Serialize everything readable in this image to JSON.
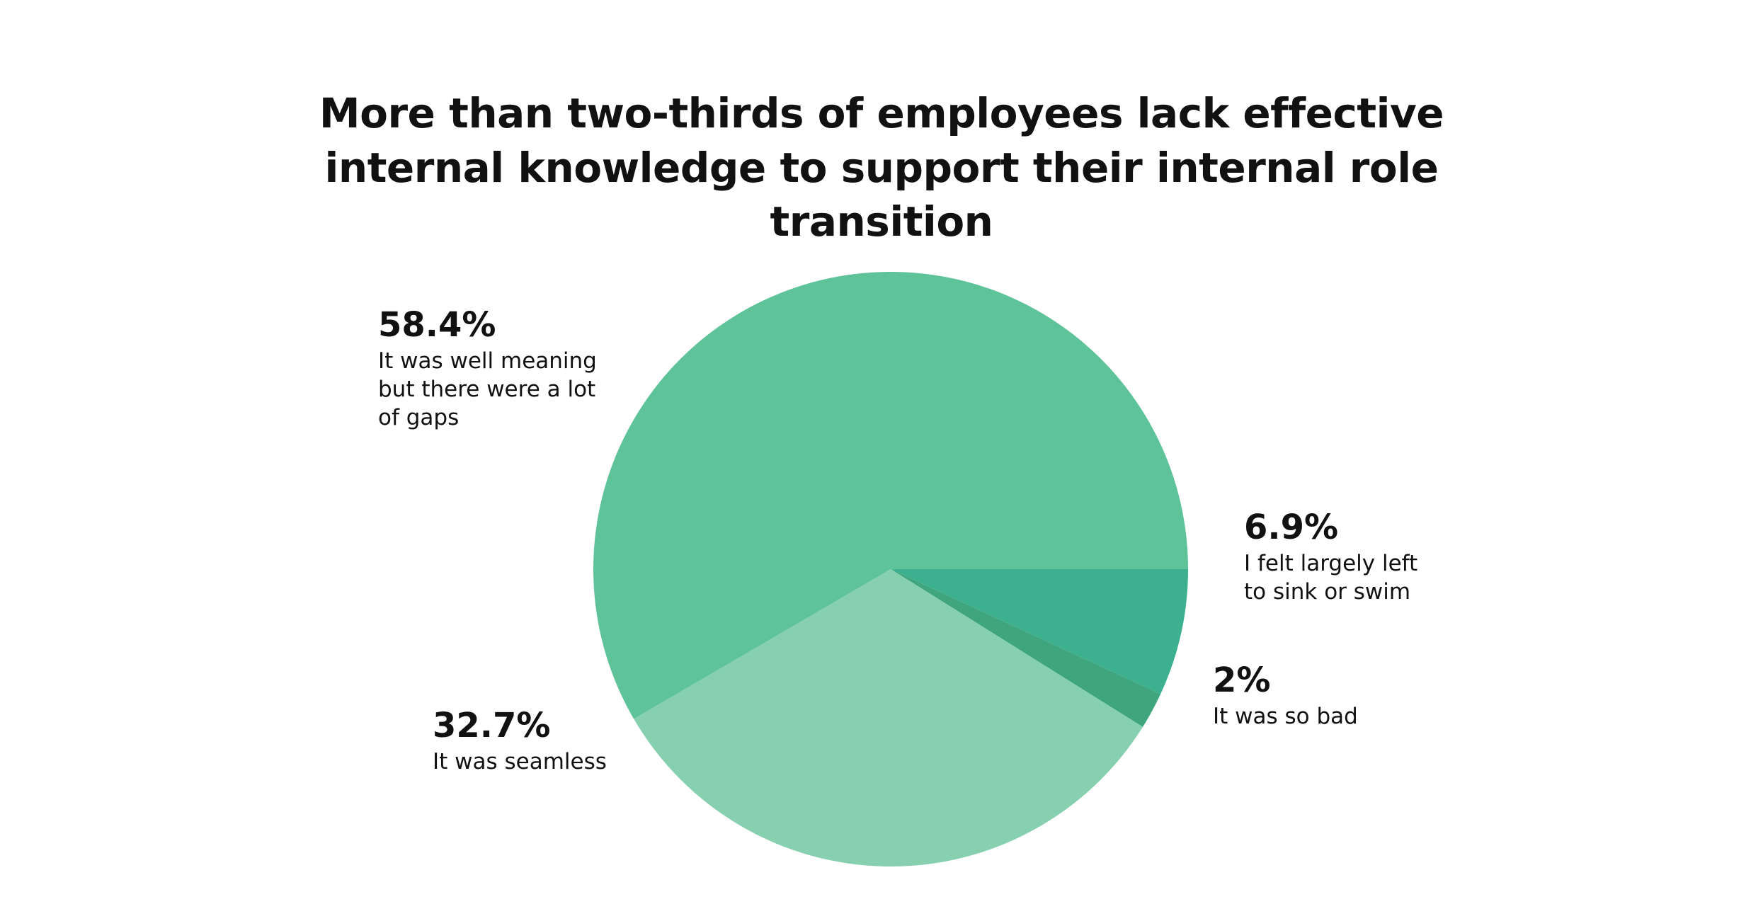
{
  "chart_data": {
    "type": "pie",
    "title": "More than two-thirds of employees lack effective internal knowledge to support their internal role transition",
    "categories": [
      "I felt largely left to sink or swim",
      "It was so bad",
      "It was seamless",
      "It was well meaning but there were a lot of gaps"
    ],
    "values": [
      6.9,
      2,
      32.7,
      58.4
    ],
    "value_labels": [
      "6.9%",
      "2%",
      "32.7%",
      "58.4%"
    ],
    "colors": [
      "#3db08f",
      "#3fa57c",
      "#86d0b0",
      "#5fc39a"
    ]
  }
}
